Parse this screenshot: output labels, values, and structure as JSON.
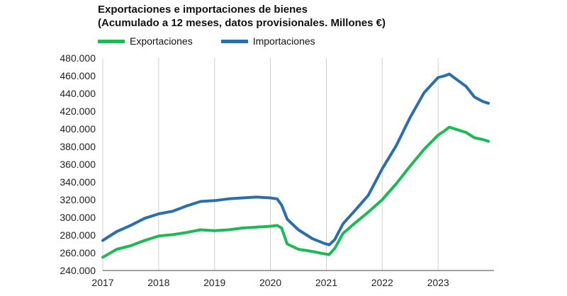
{
  "chart_data": {
    "type": "line",
    "title": "Exportaciones e importaciones de bienes",
    "subtitle": "(Acumulado a 12 meses, datos provisionales. Millones €)",
    "xlabel": "",
    "ylabel": "",
    "ylim": [
      240000,
      480000
    ],
    "yticks": [
      "240.000",
      "260.000",
      "280.000",
      "300.000",
      "320.000",
      "340.000",
      "360.000",
      "380.000",
      "400.000",
      "420.000",
      "440.000",
      "460.000",
      "480.000"
    ],
    "xticks": [
      "2017",
      "2018",
      "2019",
      "2020",
      "2021",
      "2022",
      "2023"
    ],
    "grid": "vertical",
    "legend_position": "top",
    "series": [
      {
        "name": "Exportaciones",
        "color": "#1db954",
        "points": [
          [
            2017.0,
            255000
          ],
          [
            2017.25,
            264000
          ],
          [
            2017.5,
            268000
          ],
          [
            2017.75,
            274000
          ],
          [
            2018.0,
            279000
          ],
          [
            2018.25,
            280500
          ],
          [
            2018.5,
            283000
          ],
          [
            2018.75,
            286000
          ],
          [
            2019.0,
            285000
          ],
          [
            2019.25,
            286000
          ],
          [
            2019.5,
            288000
          ],
          [
            2019.75,
            289000
          ],
          [
            2020.0,
            290000
          ],
          [
            2020.12,
            291000
          ],
          [
            2020.2,
            288000
          ],
          [
            2020.3,
            270000
          ],
          [
            2020.5,
            264000
          ],
          [
            2020.75,
            261500
          ],
          [
            2020.95,
            259000
          ],
          [
            2021.05,
            258000
          ],
          [
            2021.15,
            265000
          ],
          [
            2021.3,
            282000
          ],
          [
            2021.5,
            293000
          ],
          [
            2021.75,
            306000
          ],
          [
            2022.0,
            320000
          ],
          [
            2022.25,
            338000
          ],
          [
            2022.5,
            358000
          ],
          [
            2022.75,
            377000
          ],
          [
            2023.0,
            393000
          ],
          [
            2023.12,
            398000
          ],
          [
            2023.2,
            402000
          ],
          [
            2023.35,
            399000
          ],
          [
            2023.5,
            396000
          ],
          [
            2023.65,
            390000
          ],
          [
            2023.8,
            388000
          ],
          [
            2023.9,
            386000
          ]
        ]
      },
      {
        "name": "Importaciones",
        "color": "#2a6ead",
        "points": [
          [
            2017.0,
            274000
          ],
          [
            2017.25,
            284000
          ],
          [
            2017.5,
            291000
          ],
          [
            2017.75,
            299000
          ],
          [
            2018.0,
            304000
          ],
          [
            2018.25,
            307000
          ],
          [
            2018.5,
            313000
          ],
          [
            2018.75,
            318000
          ],
          [
            2019.0,
            319000
          ],
          [
            2019.25,
            321000
          ],
          [
            2019.5,
            322000
          ],
          [
            2019.75,
            323000
          ],
          [
            2020.0,
            322000
          ],
          [
            2020.12,
            321000
          ],
          [
            2020.2,
            314000
          ],
          [
            2020.3,
            298000
          ],
          [
            2020.5,
            286000
          ],
          [
            2020.75,
            276000
          ],
          [
            2020.95,
            271000
          ],
          [
            2021.05,
            269000
          ],
          [
            2021.15,
            275000
          ],
          [
            2021.3,
            293000
          ],
          [
            2021.5,
            307000
          ],
          [
            2021.75,
            325000
          ],
          [
            2022.0,
            355000
          ],
          [
            2022.25,
            381000
          ],
          [
            2022.5,
            413000
          ],
          [
            2022.75,
            441000
          ],
          [
            2023.0,
            458000
          ],
          [
            2023.12,
            460000
          ],
          [
            2023.2,
            462000
          ],
          [
            2023.35,
            455000
          ],
          [
            2023.5,
            448000
          ],
          [
            2023.65,
            436000
          ],
          [
            2023.8,
            431000
          ],
          [
            2023.9,
            429000
          ]
        ]
      }
    ]
  }
}
